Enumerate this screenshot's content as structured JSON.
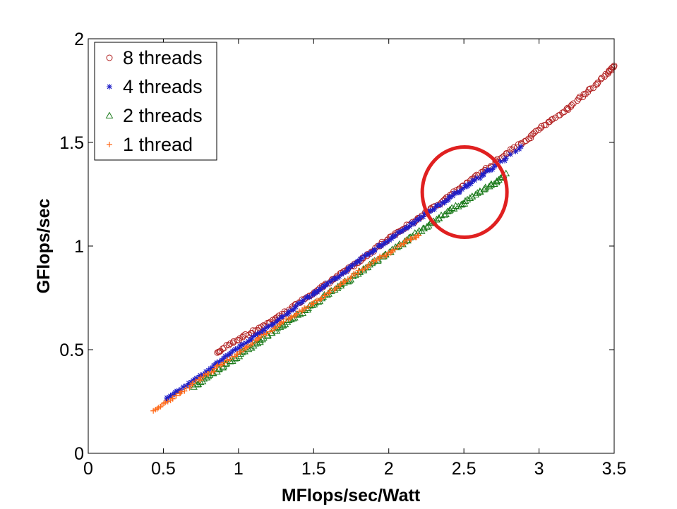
{
  "chart_data": {
    "type": "scatter",
    "title": "",
    "xlabel": "MFlops/sec/Watt",
    "ylabel": "GFlops/sec",
    "xlim": [
      0,
      3.5
    ],
    "ylim": [
      0,
      2
    ],
    "xticks": [
      "0",
      "0.5",
      "1",
      "1.5",
      "2",
      "2.5",
      "3",
      "3.5"
    ],
    "yticks": [
      "0",
      "0.5",
      "1",
      "1.5",
      "2"
    ],
    "grid": false,
    "legend_position": "top-left",
    "series": [
      {
        "name": "8 threads",
        "marker": "circle",
        "color": "#b22222",
        "x_range": [
          0.85,
          3.5
        ],
        "y_range": [
          0.48,
          1.87
        ],
        "points": [
          [
            0.85,
            0.48
          ],
          [
            0.95,
            0.53
          ],
          [
            1.05,
            0.57
          ],
          [
            1.15,
            0.61
          ],
          [
            1.25,
            0.65
          ],
          [
            1.35,
            0.7
          ],
          [
            1.45,
            0.75
          ],
          [
            1.55,
            0.8
          ],
          [
            1.65,
            0.85
          ],
          [
            1.75,
            0.9
          ],
          [
            1.85,
            0.95
          ],
          [
            1.95,
            1.01
          ],
          [
            2.05,
            1.06
          ],
          [
            2.15,
            1.11
          ],
          [
            2.25,
            1.16
          ],
          [
            2.35,
            1.21
          ],
          [
            2.45,
            1.27
          ],
          [
            2.55,
            1.32
          ],
          [
            2.65,
            1.37
          ],
          [
            2.75,
            1.43
          ],
          [
            2.85,
            1.48
          ],
          [
            2.95,
            1.53
          ],
          [
            3.05,
            1.59
          ],
          [
            3.15,
            1.64
          ],
          [
            3.25,
            1.7
          ],
          [
            3.35,
            1.76
          ],
          [
            3.45,
            1.83
          ],
          [
            3.5,
            1.87
          ]
        ]
      },
      {
        "name": "4 threads",
        "marker": "star",
        "color": "#1f1fc8",
        "x_range": [
          0.52,
          2.88
        ],
        "y_range": [
          0.26,
          1.48
        ],
        "points": [
          [
            0.52,
            0.26
          ],
          [
            0.6,
            0.3
          ],
          [
            0.7,
            0.35
          ],
          [
            0.8,
            0.4
          ],
          [
            0.9,
            0.46
          ],
          [
            1.0,
            0.51
          ],
          [
            1.1,
            0.56
          ],
          [
            1.2,
            0.61
          ],
          [
            1.3,
            0.66
          ],
          [
            1.4,
            0.72
          ],
          [
            1.5,
            0.77
          ],
          [
            1.6,
            0.82
          ],
          [
            1.7,
            0.87
          ],
          [
            1.8,
            0.93
          ],
          [
            1.9,
            0.98
          ],
          [
            2.0,
            1.03
          ],
          [
            2.1,
            1.08
          ],
          [
            2.2,
            1.13
          ],
          [
            2.3,
            1.18
          ],
          [
            2.4,
            1.23
          ],
          [
            2.5,
            1.28
          ],
          [
            2.6,
            1.33
          ],
          [
            2.7,
            1.38
          ],
          [
            2.88,
            1.48
          ]
        ]
      },
      {
        "name": "2 threads",
        "marker": "triangle",
        "color": "#1a7a1a",
        "x_range": [
          0.7,
          2.78
        ],
        "y_range": [
          0.32,
          1.35
        ],
        "points": [
          [
            0.7,
            0.32
          ],
          [
            0.8,
            0.37
          ],
          [
            0.9,
            0.42
          ],
          [
            1.0,
            0.47
          ],
          [
            1.1,
            0.52
          ],
          [
            1.2,
            0.57
          ],
          [
            1.3,
            0.62
          ],
          [
            1.4,
            0.67
          ],
          [
            1.5,
            0.72
          ],
          [
            1.6,
            0.77
          ],
          [
            1.7,
            0.82
          ],
          [
            1.8,
            0.87
          ],
          [
            1.9,
            0.92
          ],
          [
            2.0,
            0.97
          ],
          [
            2.1,
            1.02
          ],
          [
            2.2,
            1.07
          ],
          [
            2.3,
            1.12
          ],
          [
            2.4,
            1.17
          ],
          [
            2.5,
            1.21
          ],
          [
            2.6,
            1.26
          ],
          [
            2.7,
            1.3
          ],
          [
            2.78,
            1.35
          ]
        ]
      },
      {
        "name": "1 thread",
        "marker": "plus",
        "color": "#ff6a1a",
        "x_range": [
          0.43,
          2.2
        ],
        "y_range": [
          0.2,
          1.05
        ],
        "points": [
          [
            0.43,
            0.2
          ],
          [
            0.53,
            0.25
          ],
          [
            0.63,
            0.3
          ],
          [
            0.73,
            0.35
          ],
          [
            0.83,
            0.4
          ],
          [
            0.93,
            0.45
          ],
          [
            1.03,
            0.5
          ],
          [
            1.13,
            0.55
          ],
          [
            1.23,
            0.6
          ],
          [
            1.33,
            0.65
          ],
          [
            1.43,
            0.69
          ],
          [
            1.53,
            0.74
          ],
          [
            1.63,
            0.79
          ],
          [
            1.73,
            0.84
          ],
          [
            1.83,
            0.89
          ],
          [
            1.93,
            0.94
          ],
          [
            2.03,
            0.98
          ],
          [
            2.13,
            1.03
          ],
          [
            2.2,
            1.05
          ]
        ]
      }
    ],
    "annotation": {
      "type": "circle",
      "color": "#e02020",
      "center": [
        2.5,
        1.26
      ]
    }
  }
}
